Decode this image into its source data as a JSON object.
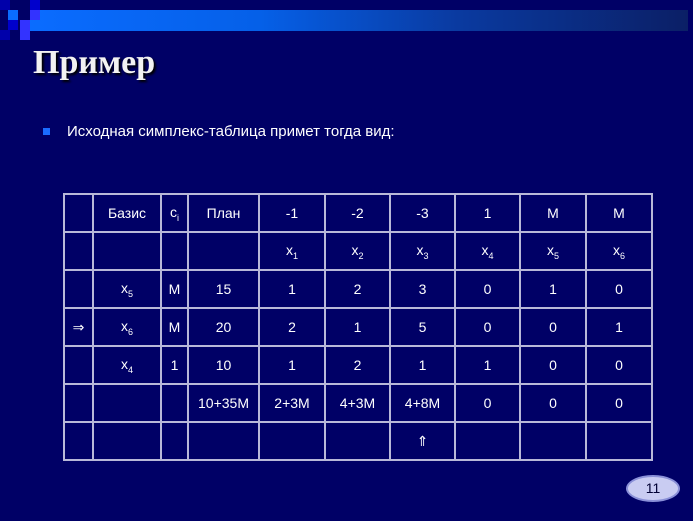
{
  "title": "Пример",
  "bullet": "Исходная симплекс-таблица примет тогда вид:",
  "table": {
    "rows": [
      [
        {
          "t": ""
        },
        {
          "t": "Базис"
        },
        {
          "t": "c",
          "s": "i"
        },
        {
          "t": "План"
        },
        {
          "t": "-1"
        },
        {
          "t": "-2"
        },
        {
          "t": "-3"
        },
        {
          "t": "1"
        },
        {
          "t": "M"
        },
        {
          "t": "M"
        }
      ],
      [
        {
          "t": ""
        },
        {
          "t": ""
        },
        {
          "t": ""
        },
        {
          "t": ""
        },
        {
          "t": "x",
          "s": "1"
        },
        {
          "t": "x",
          "s": "2"
        },
        {
          "t": "x",
          "s": "3"
        },
        {
          "t": "x",
          "s": "4"
        },
        {
          "t": "x",
          "s": "5"
        },
        {
          "t": "x",
          "s": "6"
        }
      ],
      [
        {
          "t": ""
        },
        {
          "t": "x",
          "s": "5"
        },
        {
          "t": "M"
        },
        {
          "t": "15"
        },
        {
          "t": "1"
        },
        {
          "t": "2"
        },
        {
          "t": "3"
        },
        {
          "t": "0"
        },
        {
          "t": "1"
        },
        {
          "t": "0"
        }
      ],
      [
        {
          "t": "⇒"
        },
        {
          "t": "x",
          "s": "6"
        },
        {
          "t": "M"
        },
        {
          "t": "20"
        },
        {
          "t": "2"
        },
        {
          "t": "1"
        },
        {
          "t": "5"
        },
        {
          "t": "0"
        },
        {
          "t": "0"
        },
        {
          "t": "1"
        }
      ],
      [
        {
          "t": ""
        },
        {
          "t": "x",
          "s": "4"
        },
        {
          "t": "1"
        },
        {
          "t": "10"
        },
        {
          "t": "1"
        },
        {
          "t": "2"
        },
        {
          "t": "1"
        },
        {
          "t": "1"
        },
        {
          "t": "0"
        },
        {
          "t": "0"
        }
      ],
      [
        {
          "t": ""
        },
        {
          "t": ""
        },
        {
          "t": ""
        },
        {
          "t": "10+35M"
        },
        {
          "t": "2+3M"
        },
        {
          "t": "4+3M"
        },
        {
          "t": "4+8M"
        },
        {
          "t": "0"
        },
        {
          "t": "0"
        },
        {
          "t": "0"
        }
      ],
      [
        {
          "t": ""
        },
        {
          "t": ""
        },
        {
          "t": ""
        },
        {
          "t": ""
        },
        {
          "t": ""
        },
        {
          "t": ""
        },
        {
          "t": "⇑"
        },
        {
          "t": ""
        },
        {
          "t": ""
        },
        {
          "t": ""
        }
      ]
    ]
  },
  "page_number": "11",
  "colors": {
    "background": "#000066",
    "accent": "#1a6cff"
  }
}
